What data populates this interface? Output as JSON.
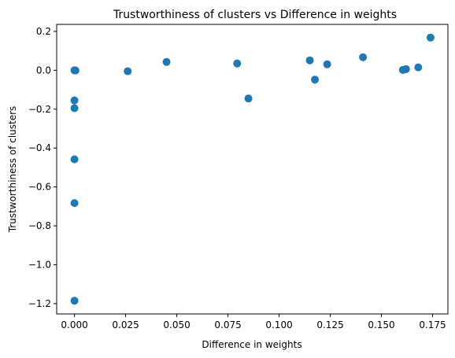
{
  "chart_data": {
    "type": "scatter",
    "title": "Trustworthiness of clusters vs Difference in weights",
    "xlabel": "Difference in weights",
    "ylabel": "Trustworthiness of clusters",
    "xlim": [
      -0.0087,
      0.1825
    ],
    "ylim": [
      -1.253,
      0.236
    ],
    "xticks": [
      0.0,
      0.025,
      0.05,
      0.075,
      0.1,
      0.125,
      0.15,
      0.175
    ],
    "xtick_labels": [
      "0.000",
      "0.025",
      "0.050",
      "0.075",
      "0.100",
      "0.125",
      "0.150",
      "0.175"
    ],
    "yticks": [
      -1.2,
      -1.0,
      -0.8,
      -0.6,
      -0.4,
      -0.2,
      0.0,
      0.2
    ],
    "ytick_labels": [
      "−1.2",
      "−1.0",
      "−0.8",
      "−0.6",
      "−0.4",
      "−0.2",
      "0.0",
      "0.2"
    ],
    "grid": false,
    "marker_color": "#1f77b4",
    "points": [
      {
        "x": 0.0,
        "y": 0.0
      },
      {
        "x": 0.0005,
        "y": -0.001
      },
      {
        "x": 0.0,
        "y": -0.155
      },
      {
        "x": 0.0,
        "y": -0.195
      },
      {
        "x": 0.0,
        "y": -0.458
      },
      {
        "x": 0.0,
        "y": -0.683
      },
      {
        "x": 0.0,
        "y": -1.185
      },
      {
        "x": 0.026,
        "y": -0.005
      },
      {
        "x": 0.045,
        "y": 0.043
      },
      {
        "x": 0.0795,
        "y": 0.035
      },
      {
        "x": 0.085,
        "y": -0.145
      },
      {
        "x": 0.115,
        "y": 0.051
      },
      {
        "x": 0.1175,
        "y": -0.048
      },
      {
        "x": 0.1235,
        "y": 0.031
      },
      {
        "x": 0.141,
        "y": 0.067
      },
      {
        "x": 0.1605,
        "y": 0.002
      },
      {
        "x": 0.162,
        "y": 0.006
      },
      {
        "x": 0.168,
        "y": 0.015
      },
      {
        "x": 0.174,
        "y": 0.168
      }
    ]
  }
}
